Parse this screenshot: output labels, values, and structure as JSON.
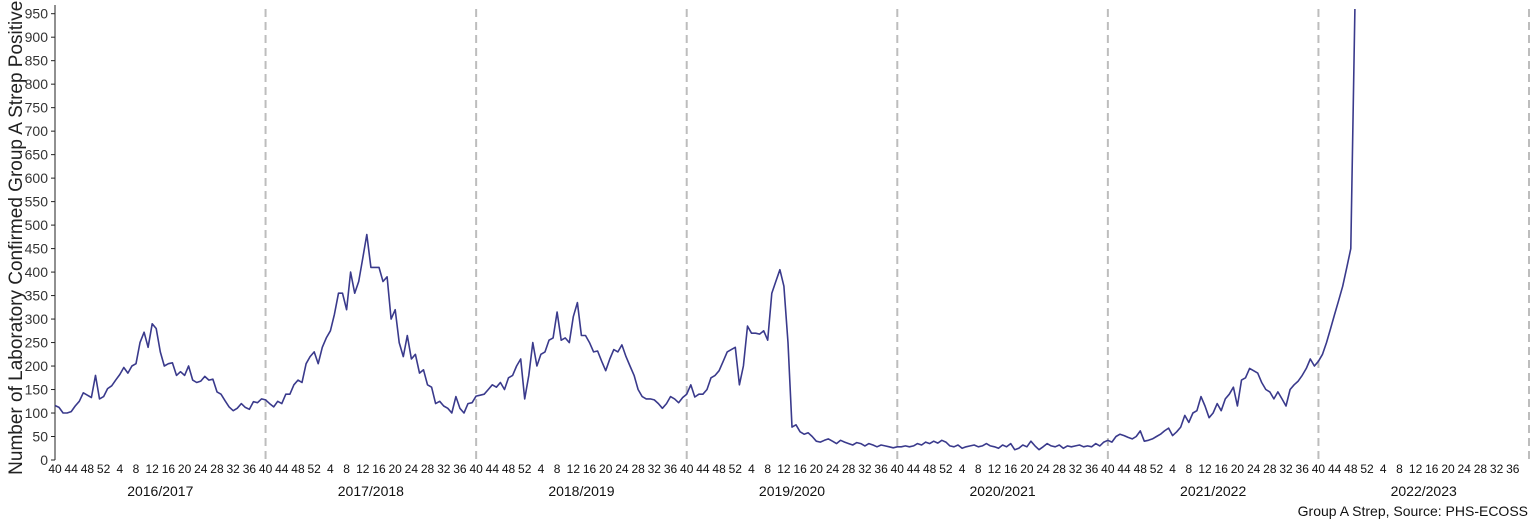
{
  "chart_data": {
    "type": "line",
    "title": "",
    "xlabel": "",
    "ylabel": "Number of Laboratory Confirmed Group A Strep Positives",
    "source": "Group A Strep, Source: PHS-ECOSS",
    "ylim": [
      0,
      960
    ],
    "yticks": [
      0,
      50,
      100,
      150,
      200,
      250,
      300,
      350,
      400,
      450,
      500,
      550,
      600,
      650,
      700,
      750,
      800,
      850,
      900,
      950
    ],
    "grid": false,
    "legend": "none",
    "line_color": "#3a3a8c",
    "divider_color": "#bdbdbd",
    "week_tick_labels": [
      "40",
      "44",
      "48",
      "52",
      "4",
      "8",
      "12",
      "16",
      "20",
      "24",
      "28",
      "32",
      "36"
    ],
    "seasons": [
      {
        "label": "2016/2017",
        "values": [
          116,
          112,
          100,
          100,
          103,
          115,
          125,
          143,
          138,
          133,
          180,
          130,
          135,
          152,
          158,
          170,
          182,
          197,
          185,
          200,
          205,
          250,
          272,
          240,
          290,
          280,
          230,
          200,
          205,
          207,
          180,
          188,
          180,
          200,
          170,
          165,
          168,
          178,
          170,
          172,
          145,
          140,
          126,
          113,
          105,
          110,
          120,
          112,
          108,
          124,
          122,
          130
        ]
      },
      {
        "label": "2017/2018",
        "values": [
          128,
          120,
          113,
          125,
          120,
          140,
          140,
          160,
          170,
          165,
          205,
          220,
          230,
          205,
          240,
          260,
          275,
          310,
          355,
          355,
          320,
          400,
          355,
          380,
          430,
          480,
          410,
          410,
          410,
          380,
          390,
          300,
          320,
          250,
          220,
          265,
          215,
          225,
          185,
          192,
          160,
          155,
          120,
          125,
          115,
          110,
          100,
          135,
          110,
          100,
          120,
          122
        ]
      },
      {
        "label": "2018/2019",
        "values": [
          136,
          138,
          140,
          150,
          160,
          155,
          165,
          150,
          175,
          180,
          200,
          215,
          130,
          180,
          250,
          200,
          225,
          230,
          255,
          260,
          315,
          255,
          260,
          250,
          305,
          335,
          265,
          265,
          250,
          230,
          232,
          210,
          190,
          215,
          235,
          230,
          245,
          220,
          200,
          180,
          150,
          135,
          130,
          130,
          128,
          120,
          110,
          120,
          135,
          130,
          122,
          133
        ]
      },
      {
        "label": "2019/2020",
        "values": [
          140,
          160,
          134,
          140,
          140,
          150,
          175,
          180,
          190,
          210,
          230,
          235,
          240,
          160,
          200,
          285,
          270,
          270,
          268,
          275,
          255,
          355,
          380,
          405,
          370,
          250,
          70,
          75,
          60,
          55,
          58,
          50,
          40,
          38,
          42,
          45,
          40,
          35,
          42,
          38,
          35,
          32,
          37,
          35,
          30,
          35,
          32,
          28,
          32,
          30,
          28,
          26
        ]
      },
      {
        "label": "2020/2021",
        "values": [
          28,
          28,
          30,
          28,
          30,
          35,
          32,
          38,
          35,
          40,
          36,
          42,
          38,
          30,
          28,
          32,
          25,
          28,
          30,
          32,
          28,
          30,
          35,
          30,
          28,
          25,
          32,
          28,
          35,
          22,
          25,
          32,
          28,
          40,
          30,
          22,
          28,
          35,
          30,
          28,
          32,
          25,
          30,
          28,
          30,
          32,
          28,
          30,
          28,
          35,
          30,
          38
        ]
      },
      {
        "label": "2021/2022",
        "values": [
          42,
          38,
          50,
          55,
          52,
          48,
          45,
          50,
          62,
          40,
          42,
          45,
          50,
          55,
          62,
          68,
          52,
          60,
          70,
          95,
          80,
          100,
          105,
          135,
          115,
          90,
          100,
          120,
          105,
          130,
          140,
          155,
          115,
          170,
          175,
          195,
          190,
          185,
          165,
          150,
          145,
          130,
          145,
          130,
          115,
          150,
          160,
          168,
          180,
          195,
          215,
          200
        ]
      },
      {
        "label": "2022/2023",
        "values": [
          210,
          225,
          250,
          280,
          310,
          340,
          370,
          410,
          450,
          960
        ]
      }
    ]
  }
}
